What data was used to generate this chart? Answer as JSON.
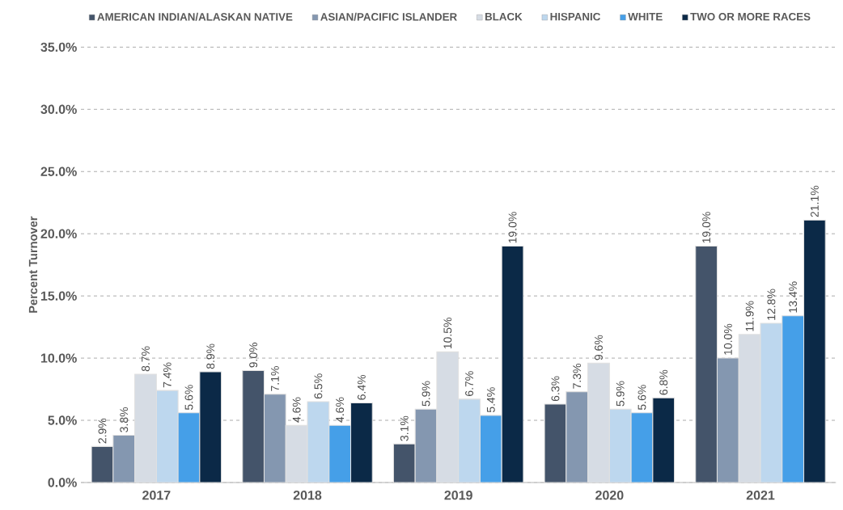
{
  "chart_data": {
    "type": "bar",
    "ylabel": "Percent Turnover",
    "categories": [
      "2017",
      "2018",
      "2019",
      "2020",
      "2021"
    ],
    "ylim": [
      0,
      35
    ],
    "yticks": [
      {
        "value": 0,
        "label": "0.0%"
      },
      {
        "value": 5,
        "label": "5.0%"
      },
      {
        "value": 10,
        "label": "10.0%"
      },
      {
        "value": 15,
        "label": "15.0%"
      },
      {
        "value": 20,
        "label": "20.0%"
      },
      {
        "value": 25,
        "label": "25.0%"
      },
      {
        "value": 30,
        "label": "30.0%"
      },
      {
        "value": 35,
        "label": "35.0%"
      }
    ],
    "grid": "y",
    "legend": "top",
    "series": [
      {
        "name": "AMERICAN INDIAN/ALASKAN NATIVE",
        "color": "#44546a",
        "values": [
          2.9,
          9.0,
          3.1,
          6.3,
          19.0
        ],
        "value_labels": [
          "2.9%",
          "9.0%",
          "3.1%",
          "6.3%",
          "19.0%"
        ]
      },
      {
        "name": "ASIAN/PACIFIC ISLANDER",
        "color": "#8497b0",
        "values": [
          3.8,
          7.1,
          5.9,
          7.3,
          10.0
        ],
        "value_labels": [
          "3.8%",
          "7.1%",
          "5.9%",
          "7.3%",
          "10.0%"
        ]
      },
      {
        "name": "BLACK",
        "color": "#d6dce4",
        "values": [
          8.7,
          4.6,
          10.5,
          9.6,
          11.9
        ],
        "value_labels": [
          "8.7%",
          "4.6%",
          "10.5%",
          "9.6%",
          "11.9%"
        ]
      },
      {
        "name": "HISPANIC",
        "color": "#bdd7ee",
        "values": [
          7.4,
          6.5,
          6.7,
          5.9,
          12.8
        ],
        "value_labels": [
          "7.4%",
          "6.5%",
          "6.7%",
          "5.9%",
          "12.8%"
        ]
      },
      {
        "name": "WHITE",
        "color": "#459fe8",
        "values": [
          5.6,
          4.6,
          5.4,
          5.6,
          13.4
        ],
        "value_labels": [
          "5.6%",
          "4.6%",
          "5.4%",
          "5.6%",
          "13.4%"
        ]
      },
      {
        "name": "TWO OR MORE RACES",
        "color": "#0b2947",
        "values": [
          8.9,
          6.4,
          19.0,
          6.8,
          21.1
        ],
        "value_labels": [
          "8.9%",
          "6.4%",
          "19.0%",
          "6.8%",
          "21.1%"
        ]
      }
    ]
  }
}
